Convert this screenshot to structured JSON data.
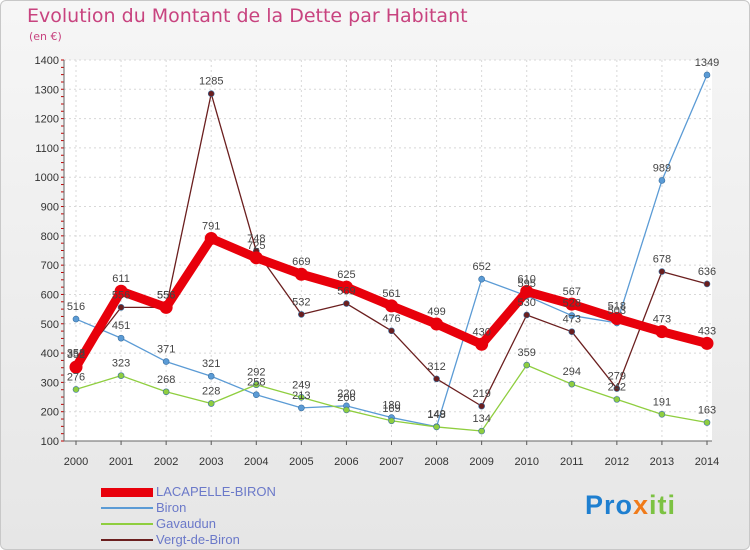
{
  "title": "Evolution du Montant de la Dette par Habitant",
  "unit": "(en €)",
  "logo": {
    "parts": [
      "Pro",
      "x",
      "iti"
    ],
    "colors": [
      "#1e7fd0",
      "#f07b1a",
      "#7cc242"
    ]
  },
  "chart_data": {
    "type": "line",
    "title": "Evolution du Montant de la Dette par Habitant",
    "subtitle": "(en €)",
    "x": [
      2000,
      2001,
      2002,
      2003,
      2004,
      2005,
      2006,
      2007,
      2008,
      2009,
      2010,
      2011,
      2012,
      2013,
      2014
    ],
    "ylim": [
      100,
      1400
    ],
    "yticks": [
      100,
      200,
      300,
      400,
      500,
      600,
      700,
      800,
      900,
      1000,
      1100,
      1200,
      1300,
      1400
    ],
    "grid": true,
    "legend_position": "bottom-left",
    "series": [
      {
        "name": "LACAPELLE-BIRON",
        "color": "#e8000b",
        "values": [
          352,
          611,
          556,
          791,
          725,
          669,
          625,
          561,
          499,
          430,
          610,
          567,
          518,
          473,
          433
        ]
      },
      {
        "name": "Biron",
        "color": "#5b9bd5",
        "values": [
          516,
          451,
          371,
          321,
          258,
          213,
          220,
          180,
          149,
          652,
          595,
          528,
          503,
          989,
          1349
        ]
      },
      {
        "name": "Gavaudun",
        "color": "#8fce3f",
        "values": [
          276,
          323,
          268,
          228,
          292,
          249,
          206,
          169,
          148,
          134,
          359,
          294,
          242,
          191,
          163
        ]
      },
      {
        "name": "Vergt-de-Biron",
        "color": "#6b1f1f",
        "values": [
          358,
          556,
          556,
          1285,
          748,
          532,
          569,
          476,
          312,
          219,
          530,
          473,
          279,
          678,
          636
        ]
      }
    ]
  }
}
